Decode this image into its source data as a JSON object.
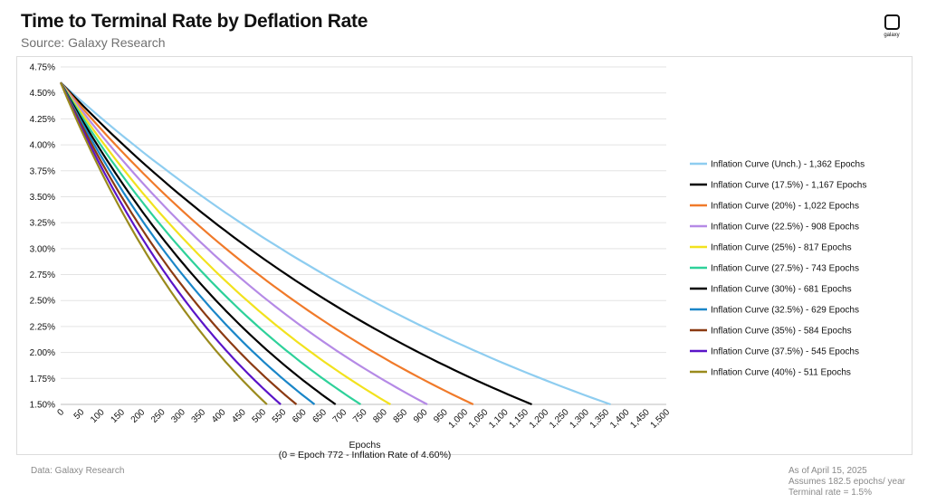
{
  "header": {
    "title": "Time to Terminal Rate by Deflation Rate",
    "subtitle": "Source: Galaxy Research",
    "logo_text": "galaxy"
  },
  "footer": {
    "left": "Data: Galaxy Research",
    "right_lines": [
      "As of April 15, 2025",
      "Assumes 182.5 epochs/ year",
      "Terminal rate = 1.5%"
    ]
  },
  "chart_data": {
    "type": "line",
    "title": "Time to Terminal Rate by Deflation Rate",
    "xlabel": "Epochs",
    "xlabel_note": "(0 = Epoch 772 - Inflation Rate of 4.60%)",
    "ylabel": "",
    "xlim": [
      0,
      1500
    ],
    "ylim": [
      1.5,
      4.75
    ],
    "x_ticks": [
      "0",
      "50",
      "100",
      "150",
      "200",
      "250",
      "300",
      "350",
      "400",
      "450",
      "500",
      "550",
      "600",
      "650",
      "700",
      "750",
      "800",
      "850",
      "900",
      "950",
      "1,000",
      "1,050",
      "1,100",
      "1,150",
      "1,200",
      "1,250",
      "1,300",
      "1,350",
      "1,400",
      "1,450",
      "1,500"
    ],
    "x_tick_values": [
      0,
      50,
      100,
      150,
      200,
      250,
      300,
      350,
      400,
      450,
      500,
      550,
      600,
      650,
      700,
      750,
      800,
      850,
      900,
      950,
      1000,
      1050,
      1100,
      1150,
      1200,
      1250,
      1300,
      1350,
      1400,
      1450,
      1500
    ],
    "y_ticks": [
      "1.50%",
      "1.75%",
      "2.00%",
      "2.25%",
      "2.50%",
      "2.75%",
      "3.00%",
      "3.25%",
      "3.50%",
      "3.75%",
      "4.00%",
      "4.25%",
      "4.50%",
      "4.75%"
    ],
    "y_tick_values": [
      1.5,
      1.75,
      2.0,
      2.25,
      2.5,
      2.75,
      3.0,
      3.25,
      3.5,
      3.75,
      4.0,
      4.25,
      4.5,
      4.75
    ],
    "start_rate": 4.6,
    "terminal_rate": 1.5,
    "grid": true,
    "legend_position": "right",
    "series": [
      {
        "name": "Inflation Curve (Unch.) - 1,362 Epochs",
        "epochs": 1362,
        "color": "#8ecdf0"
      },
      {
        "name": "Inflation Curve (17.5%) - 1,167 Epochs",
        "epochs": 1167,
        "color": "#000000"
      },
      {
        "name": "Inflation Curve (20%) - 1,022 Epochs",
        "epochs": 1022,
        "color": "#f07a2a"
      },
      {
        "name": "Inflation Curve (22.5%) - 908 Epochs",
        "epochs": 908,
        "color": "#b58ae6"
      },
      {
        "name": "Inflation Curve (25%) - 817 Epochs",
        "epochs": 817,
        "color": "#f2e21e"
      },
      {
        "name": "Inflation Curve (27.5%) - 743 Epochs",
        "epochs": 743,
        "color": "#2ed19a"
      },
      {
        "name": "Inflation Curve (30%) - 681 Epochs",
        "epochs": 681,
        "color": "#000000"
      },
      {
        "name": "Inflation Curve (32.5%) - 629 Epochs",
        "epochs": 629,
        "color": "#1a86c8"
      },
      {
        "name": "Inflation Curve (35%) - 584 Epochs",
        "epochs": 584,
        "color": "#8b3a12"
      },
      {
        "name": "Inflation Curve (37.5%) - 545 Epochs",
        "epochs": 545,
        "color": "#5a14c8"
      },
      {
        "name": "Inflation Curve (40%) - 511 Epochs",
        "epochs": 511,
        "color": "#9a8a1c"
      }
    ]
  }
}
